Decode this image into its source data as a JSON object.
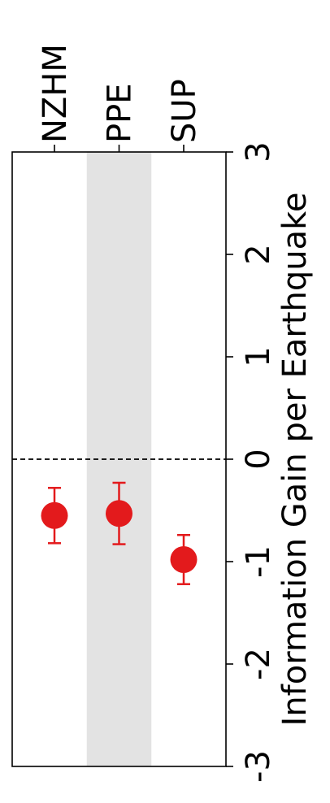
{
  "chart_data": {
    "type": "scatter",
    "orientation": "rotated-90",
    "categories": [
      "NZHM",
      "PPE",
      "SUP"
    ],
    "values": [
      -0.55,
      -0.53,
      -0.98
    ],
    "error_low": [
      -0.82,
      -0.83,
      -1.22
    ],
    "error_high": [
      -0.28,
      -0.23,
      -0.74
    ],
    "ylabel": "Information Gain per Earthquake",
    "ylim": [
      -3,
      3
    ],
    "yticks": [
      "-3",
      "-2",
      "-1",
      "0",
      "1",
      "2",
      "3"
    ],
    "reference_line": 0,
    "highlight_band_category": "PPE",
    "grid": false,
    "colors": {
      "marker": "#e31a1c",
      "band": "#e3e3e3",
      "reference_line": "#000000"
    }
  }
}
